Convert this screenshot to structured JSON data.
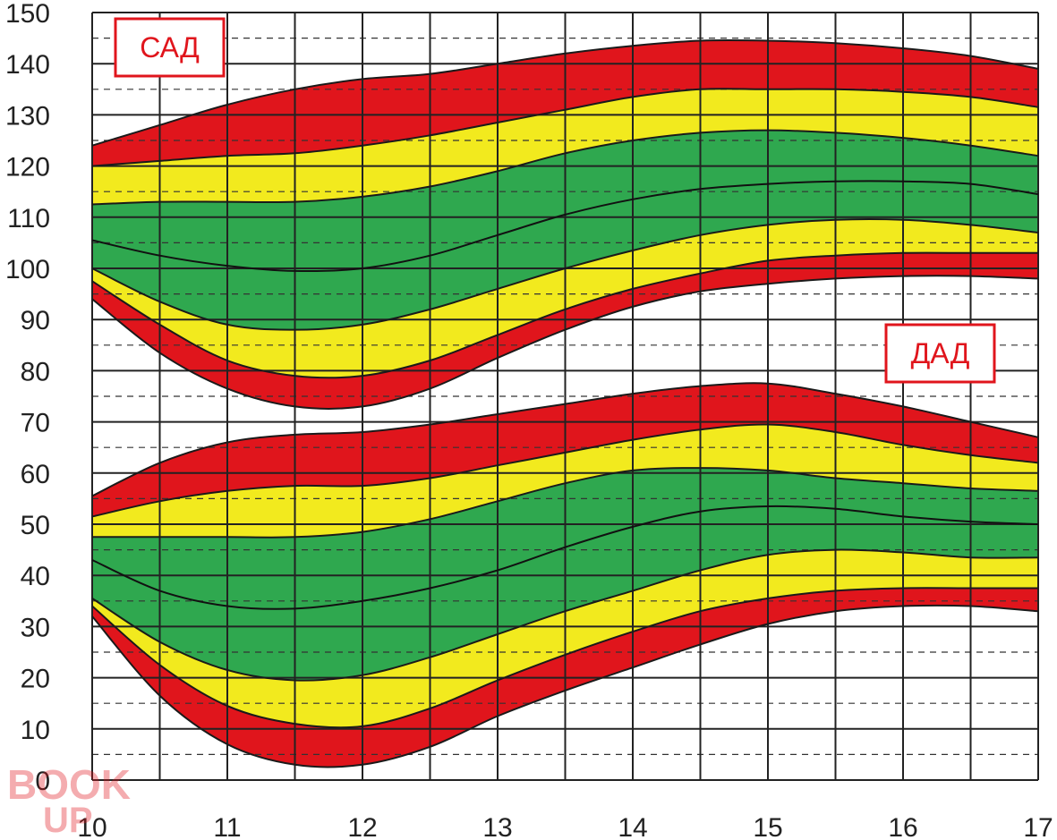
{
  "chart_data": {
    "type": "area",
    "x_ticks": [
      10,
      11,
      12,
      13,
      14,
      15,
      16,
      17
    ],
    "y_ticks": [
      0,
      10,
      20,
      30,
      40,
      50,
      60,
      70,
      80,
      90,
      100,
      110,
      120,
      130,
      140,
      150
    ],
    "y_tick_labels": [
      "0",
      "10",
      "20",
      "30",
      "40",
      "50",
      "60",
      "70",
      "80",
      "90",
      "100",
      "110",
      "120",
      "130",
      "140",
      "150"
    ],
    "xlim": [
      10,
      17
    ],
    "ylim": [
      0,
      150
    ],
    "grid": "major solid lines every 1 on x and 10 on y, dashed minor lines every 5 on y",
    "colors": {
      "outer": "#e0151c",
      "middle": "#f2ea1e",
      "inner": "#2fa84f"
    },
    "groups": [
      {
        "label": "САД",
        "x": [
          10,
          10.5,
          11,
          11.5,
          12,
          12.5,
          13,
          13.5,
          14,
          14.5,
          15,
          15.5,
          16,
          16.5,
          17
        ],
        "bands": {
          "upper_red": [
            124,
            128,
            132,
            135,
            137,
            138,
            140,
            142,
            143.5,
            144.5,
            144.5,
            144,
            143,
            141.5,
            139
          ],
          "upper_yellow": [
            120,
            121,
            122,
            122.5,
            124,
            126,
            128.5,
            131,
            133.5,
            135,
            135,
            135,
            134.5,
            133.5,
            131.5
          ],
          "upper_green": [
            112.5,
            113,
            113,
            113,
            114,
            116,
            119,
            122.5,
            125,
            126.5,
            127,
            126.5,
            125.5,
            124,
            122
          ],
          "median": [
            105.5,
            102.5,
            100.5,
            99.5,
            100,
            102.5,
            106.5,
            110.5,
            113.5,
            115.5,
            116.5,
            117,
            117,
            116.5,
            114.5
          ],
          "lower_green": [
            100,
            93.5,
            89,
            88,
            89,
            92,
            96,
            100,
            103.5,
            106.5,
            108.5,
            109.5,
            109.5,
            108.5,
            107
          ],
          "lower_yellow": [
            97.5,
            89,
            82,
            79,
            79,
            82,
            87,
            92,
            96,
            99,
            101.5,
            102.5,
            103,
            103,
            103
          ],
          "lower_red": [
            94,
            83.5,
            76.5,
            73,
            73,
            76.5,
            82.5,
            88,
            92.5,
            95.5,
            97,
            98,
            98.5,
            98.5,
            98
          ]
        }
      },
      {
        "label": "ДАД",
        "x": [
          10,
          10.5,
          11,
          11.5,
          12,
          12.5,
          13,
          13.5,
          14,
          14.5,
          15,
          15.5,
          16,
          16.5,
          17
        ],
        "bands": {
          "upper_red": [
            55.5,
            62,
            66,
            67.5,
            68,
            69.5,
            71.5,
            73.5,
            75.5,
            77,
            77.5,
            75.5,
            73,
            70,
            67
          ],
          "upper_yellow": [
            51.5,
            54.5,
            56.5,
            57.5,
            57.5,
            59,
            61.5,
            64,
            66.5,
            68.5,
            69.5,
            68,
            65.5,
            63.5,
            62
          ],
          "upper_green": [
            47.5,
            47.5,
            47.5,
            47.5,
            48.5,
            51,
            54.5,
            58,
            60.5,
            61,
            60.5,
            59,
            58,
            57,
            56.5
          ],
          "median": [
            43,
            37,
            34,
            33.5,
            35,
            37.5,
            41,
            45.5,
            49.5,
            52.5,
            53.5,
            53,
            51.5,
            50.5,
            50
          ],
          "lower_green": [
            35.5,
            27,
            21.5,
            19.5,
            20.5,
            24,
            28.5,
            33,
            37,
            41,
            44,
            45,
            44.5,
            43.5,
            43.5
          ],
          "lower_yellow": [
            34,
            22.5,
            14.5,
            11,
            10.5,
            14,
            19.5,
            24.5,
            29,
            33,
            35.5,
            37,
            37.5,
            37.5,
            37.5
          ],
          "lower_red": [
            32,
            16.5,
            7,
            3,
            3,
            6.5,
            12.5,
            17.5,
            22,
            26.5,
            30.5,
            33,
            34,
            34,
            33
          ]
        }
      }
    ],
    "annotations": [
      "САД",
      "ДАД"
    ]
  },
  "watermark": {
    "text_top": "BOOK",
    "text_bottom": "UP"
  }
}
